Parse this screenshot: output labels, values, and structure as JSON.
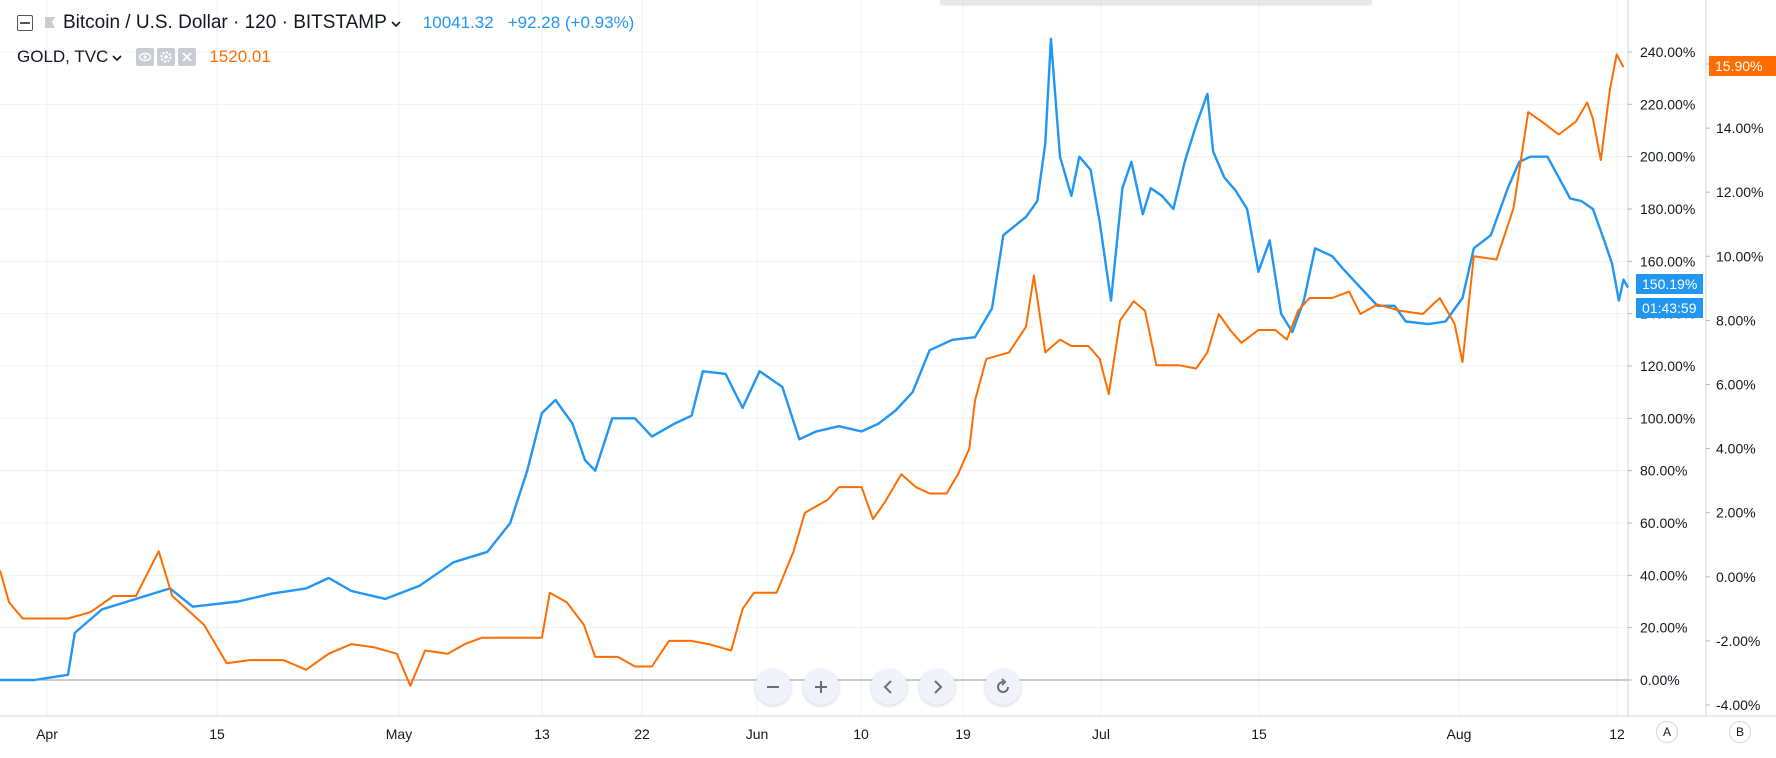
{
  "header": {
    "main_symbol": "Bitcoin / U.S. Dollar · 120 · BITSTAMP",
    "main_price": "10041.32",
    "main_change": "+92.28 (+0.93%)",
    "compare_symbol": "GOLD, TVC",
    "compare_price": "1520.01"
  },
  "colors": {
    "btc": "#2196f3",
    "gold": "#ff6d00",
    "grid": "#eef0f3",
    "axis_text": "#131722",
    "baseline": "#9598a1"
  },
  "badges": {
    "btc_pct": "150.19%",
    "countdown": "01:43:59",
    "gold_pct": "15.90%"
  },
  "nav_buttons": [
    {
      "name": "zoom-out",
      "icon": "minus-icon"
    },
    {
      "name": "zoom-in",
      "icon": "plus-icon"
    },
    {
      "name": "scroll-left",
      "icon": "chevron-left-icon"
    },
    {
      "name": "scroll-right",
      "icon": "chevron-right-icon"
    },
    {
      "name": "reset",
      "icon": "reset-icon"
    }
  ],
  "scale_buttons": {
    "left": "A",
    "right": "B"
  },
  "chart_data": {
    "type": "line",
    "x_ticks": [
      "Apr",
      "15",
      "May",
      "13",
      "22",
      "Jun",
      "10",
      "19",
      "Jul",
      "15",
      "Aug",
      "12"
    ],
    "y_left_ticks": [
      "240.00%",
      "220.00%",
      "200.00%",
      "180.00%",
      "160.00%",
      "140.00%",
      "120.00%",
      "100.00%",
      "80.00%",
      "60.00%",
      "40.00%",
      "20.00%",
      "0.00%"
    ],
    "y_right_ticks": [
      "16.00%",
      "14.00%",
      "12.00%",
      "10.00%",
      "8.00%",
      "6.00%",
      "4.00%",
      "2.00%",
      "0.00%",
      "-2.00%",
      "-4.00%"
    ],
    "y_left_range": [
      0,
      240
    ],
    "y_right_range": [
      -4,
      16
    ],
    "series": [
      {
        "name": "Bitcoin / U.S. Dollar",
        "axis": "left",
        "points": [
          [
            0,
            0
          ],
          [
            30,
            0
          ],
          [
            60,
            2
          ],
          [
            66,
            18
          ],
          [
            90,
            27
          ],
          [
            120,
            31
          ],
          [
            150,
            35
          ],
          [
            170,
            28
          ],
          [
            210,
            30
          ],
          [
            240,
            33
          ],
          [
            270,
            35
          ],
          [
            290,
            39
          ],
          [
            310,
            34
          ],
          [
            340,
            31
          ],
          [
            370,
            36
          ],
          [
            400,
            45
          ],
          [
            430,
            49
          ],
          [
            450,
            60
          ],
          [
            465,
            80
          ],
          [
            478,
            102
          ],
          [
            490,
            107
          ],
          [
            505,
            98
          ],
          [
            516,
            84
          ],
          [
            525,
            80
          ],
          [
            540,
            100
          ],
          [
            560,
            100
          ],
          [
            575,
            93
          ],
          [
            595,
            98
          ],
          [
            610,
            101
          ],
          [
            620,
            118
          ],
          [
            640,
            117
          ],
          [
            655,
            104
          ],
          [
            670,
            118
          ],
          [
            690,
            112
          ],
          [
            705,
            92
          ],
          [
            720,
            95
          ],
          [
            740,
            97
          ],
          [
            760,
            95
          ],
          [
            775,
            98
          ],
          [
            790,
            103
          ],
          [
            805,
            110
          ],
          [
            820,
            126
          ],
          [
            840,
            130
          ],
          [
            860,
            131
          ],
          [
            875,
            142
          ],
          [
            885,
            170
          ],
          [
            905,
            177
          ],
          [
            915,
            183
          ],
          [
            922,
            205
          ],
          [
            927,
            245
          ],
          [
            935,
            200
          ],
          [
            945,
            185
          ],
          [
            952,
            200
          ],
          [
            962,
            195
          ],
          [
            970,
            175
          ],
          [
            980,
            145
          ],
          [
            990,
            188
          ],
          [
            998,
            198
          ],
          [
            1008,
            178
          ],
          [
            1015,
            188
          ],
          [
            1025,
            185
          ],
          [
            1035,
            180
          ],
          [
            1045,
            198
          ],
          [
            1055,
            212
          ],
          [
            1065,
            224
          ],
          [
            1070,
            202
          ],
          [
            1080,
            192
          ],
          [
            1090,
            187
          ],
          [
            1100,
            180
          ],
          [
            1110,
            156
          ],
          [
            1120,
            168
          ],
          [
            1130,
            140
          ],
          [
            1140,
            133
          ],
          [
            1150,
            145
          ],
          [
            1160,
            165
          ],
          [
            1175,
            162
          ],
          [
            1185,
            157
          ],
          [
            1200,
            150
          ],
          [
            1215,
            143
          ],
          [
            1230,
            143
          ],
          [
            1240,
            137
          ],
          [
            1260,
            136
          ],
          [
            1275,
            137
          ],
          [
            1290,
            146
          ],
          [
            1300,
            165
          ],
          [
            1315,
            170
          ],
          [
            1330,
            188
          ],
          [
            1340,
            198
          ],
          [
            1350,
            200
          ],
          [
            1365,
            200
          ],
          [
            1375,
            192
          ],
          [
            1385,
            184
          ],
          [
            1395,
            183
          ],
          [
            1405,
            180
          ],
          [
            1415,
            168
          ],
          [
            1422,
            159
          ],
          [
            1428,
            145
          ],
          [
            1432,
            153
          ],
          [
            1436,
            150
          ]
        ]
      },
      {
        "name": "GOLD, TVC",
        "axis": "right",
        "points": [
          [
            0,
            0.2
          ],
          [
            8,
            -0.8
          ],
          [
            20,
            -1.3
          ],
          [
            40,
            -1.3
          ],
          [
            60,
            -1.3
          ],
          [
            80,
            -1.1
          ],
          [
            100,
            -0.6
          ],
          [
            120,
            -0.6
          ],
          [
            140,
            0.8
          ],
          [
            152,
            -0.6
          ],
          [
            180,
            -1.5
          ],
          [
            200,
            -2.7
          ],
          [
            220,
            -2.6
          ],
          [
            250,
            -2.6
          ],
          [
            270,
            -2.9
          ],
          [
            290,
            -2.4
          ],
          [
            310,
            -2.1
          ],
          [
            330,
            -2.2
          ],
          [
            350,
            -2.4
          ],
          [
            362,
            -3.4
          ],
          [
            375,
            -2.3
          ],
          [
            395,
            -2.4
          ],
          [
            410,
            -2.1
          ],
          [
            425,
            -1.9
          ],
          [
            445,
            -1.9
          ],
          [
            465,
            -1.9
          ],
          [
            478,
            -1.9
          ],
          [
            485,
            -0.5
          ],
          [
            500,
            -0.8
          ],
          [
            515,
            -1.5
          ],
          [
            525,
            -2.5
          ],
          [
            545,
            -2.5
          ],
          [
            560,
            -2.8
          ],
          [
            575,
            -2.8
          ],
          [
            590,
            -2.0
          ],
          [
            610,
            -2.0
          ],
          [
            625,
            -2.1
          ],
          [
            645,
            -2.3
          ],
          [
            655,
            -1.0
          ],
          [
            665,
            -0.5
          ],
          [
            685,
            -0.5
          ],
          [
            700,
            0.8
          ],
          [
            710,
            2.0
          ],
          [
            730,
            2.4
          ],
          [
            740,
            2.8
          ],
          [
            760,
            2.8
          ],
          [
            770,
            1.8
          ],
          [
            780,
            2.3
          ],
          [
            795,
            3.2
          ],
          [
            808,
            2.8
          ],
          [
            820,
            2.6
          ],
          [
            835,
            2.6
          ],
          [
            845,
            3.2
          ],
          [
            855,
            4.0
          ],
          [
            860,
            5.5
          ],
          [
            870,
            6.8
          ],
          [
            890,
            7.0
          ],
          [
            905,
            7.8
          ],
          [
            912,
            9.4
          ],
          [
            922,
            7.0
          ],
          [
            935,
            7.4
          ],
          [
            945,
            7.2
          ],
          [
            960,
            7.2
          ],
          [
            970,
            6.8
          ],
          [
            978,
            5.7
          ],
          [
            988,
            8.0
          ],
          [
            1000,
            8.6
          ],
          [
            1010,
            8.3
          ],
          [
            1020,
            6.6
          ],
          [
            1040,
            6.6
          ],
          [
            1055,
            6.5
          ],
          [
            1065,
            7.0
          ],
          [
            1075,
            8.2
          ],
          [
            1085,
            7.7
          ],
          [
            1095,
            7.3
          ],
          [
            1110,
            7.7
          ],
          [
            1125,
            7.7
          ],
          [
            1135,
            7.4
          ],
          [
            1145,
            8.3
          ],
          [
            1155,
            8.7
          ],
          [
            1175,
            8.7
          ],
          [
            1190,
            8.9
          ],
          [
            1200,
            8.2
          ],
          [
            1215,
            8.5
          ],
          [
            1235,
            8.3
          ],
          [
            1255,
            8.2
          ],
          [
            1270,
            8.7
          ],
          [
            1283,
            7.9
          ],
          [
            1290,
            6.7
          ],
          [
            1300,
            10.0
          ],
          [
            1320,
            9.9
          ],
          [
            1335,
            11.5
          ],
          [
            1348,
            14.5
          ],
          [
            1360,
            14.2
          ],
          [
            1375,
            13.8
          ],
          [
            1390,
            14.2
          ],
          [
            1400,
            14.8
          ],
          [
            1405,
            14.3
          ],
          [
            1412,
            13.0
          ],
          [
            1420,
            15.2
          ],
          [
            1426,
            16.3
          ],
          [
            1432,
            15.9
          ]
        ]
      }
    ],
    "grid": true,
    "legend_position": "top-left"
  }
}
